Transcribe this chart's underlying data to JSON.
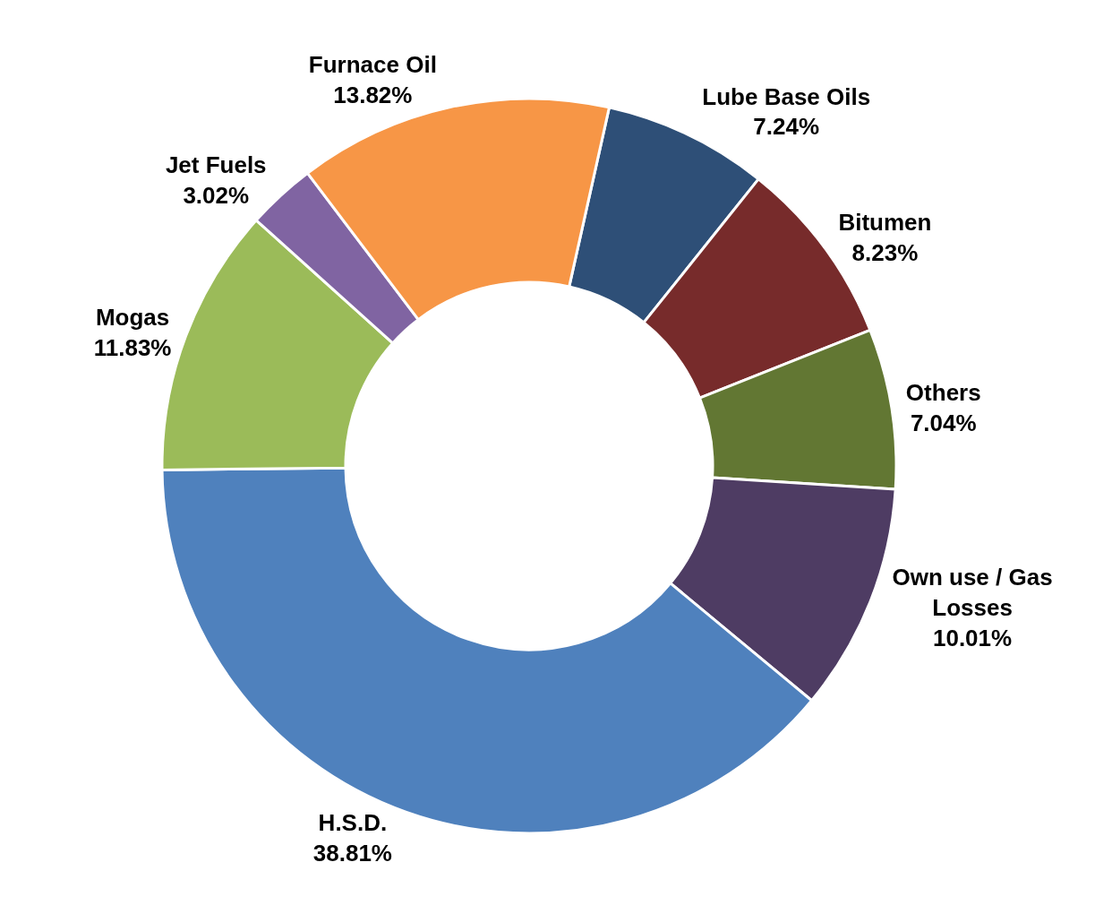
{
  "chart_data": {
    "type": "donut",
    "categories": [
      "Lube Base Oils",
      "Bitumen",
      "Others",
      "Own use / Gas Losses",
      "H.S.D.",
      "Mogas",
      "Jet Fuels",
      "Furnace Oil"
    ],
    "values": [
      7.24,
      8.23,
      7.04,
      10.01,
      38.81,
      11.83,
      3.02,
      13.82
    ],
    "colors": [
      "#2e4f77",
      "#772b2b",
      "#627733",
      "#4e3c63",
      "#4f81bd",
      "#9bbb59",
      "#8064a2",
      "#f79646"
    ],
    "value_labels": [
      "7.24%",
      "8.23%",
      "7.04%",
      "10.01%",
      "38.81%",
      "11.83%",
      "3.02%",
      "13.82%"
    ],
    "legend": false
  }
}
